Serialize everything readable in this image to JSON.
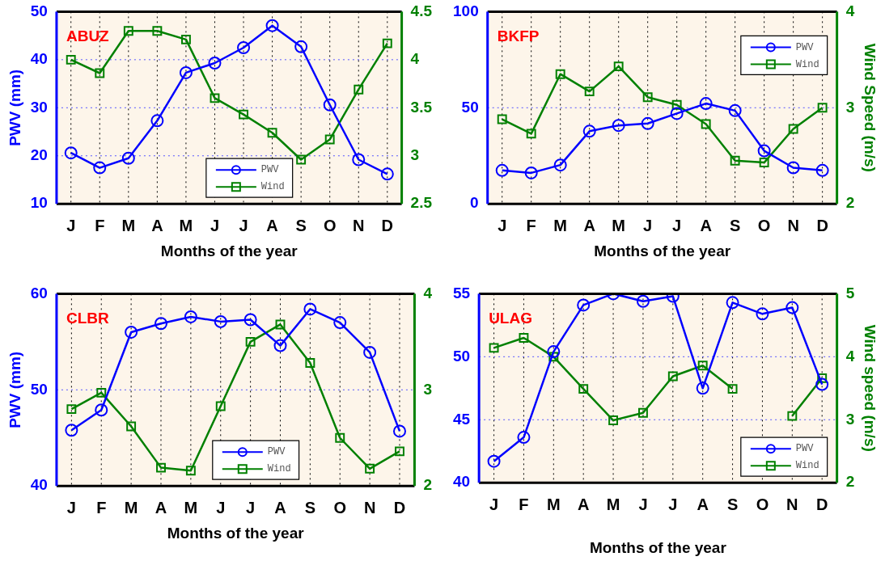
{
  "chart_data": [
    {
      "type": "line",
      "categories": [
        "J",
        "F",
        "M",
        "A",
        "M",
        "J",
        "J",
        "A",
        "S",
        "O",
        "N",
        "D"
      ],
      "xlabel": "Months of the year",
      "ylabel": "PWV (mm)",
      "ylim": [
        10,
        50
      ],
      "yticks": [
        10,
        20,
        30,
        40,
        50
      ],
      "y2lim": [
        2.5,
        4.5
      ],
      "y2ticks": [
        2.5,
        3,
        3.5,
        4,
        4.5
      ],
      "grid": true,
      "legend": "bottom",
      "annotations": [
        "ABUZ"
      ],
      "series": [
        {
          "name": "PWV",
          "color": "#0000ff",
          "marker": "circle",
          "values": [
            20.6,
            17.5,
            19.5,
            27.3,
            37.3,
            39.3,
            42.5,
            47.1,
            42.7,
            30.6,
            19.2,
            16.2
          ]
        },
        {
          "name": "Wind",
          "color": "#008000",
          "marker": "square",
          "axis": "y2",
          "values": [
            4.0,
            3.86,
            4.3,
            4.3,
            4.21,
            3.6,
            3.43,
            3.24,
            2.96,
            3.17,
            3.69,
            4.17
          ]
        }
      ]
    },
    {
      "type": "line",
      "categories": [
        "J",
        "F",
        "M",
        "A",
        "M",
        "J",
        "J",
        "A",
        "S",
        "O",
        "N",
        "D"
      ],
      "xlabel": "Months of the year",
      "y2label": "Wind Speed (m/s)",
      "ylim": [
        0,
        100
      ],
      "yticks": [
        0,
        50,
        100
      ],
      "y2lim": [
        2,
        4
      ],
      "y2ticks": [
        2,
        3,
        4
      ],
      "grid": "x",
      "ref_lines": [
        {
          "axis": "y",
          "value": 50,
          "color": "#5555ff",
          "line_style": "dotted"
        }
      ],
      "legend": "top right",
      "annotations": [
        "BKFP"
      ],
      "series": [
        {
          "name": "PWV",
          "color": "#0000ff",
          "marker": "circle",
          "values": [
            17.4,
            16.1,
            20.2,
            37.8,
            40.8,
            41.8,
            47,
            52.2,
            48.5,
            27.6,
            18.8,
            17.4
          ]
        },
        {
          "name": "Wind",
          "color": "#008000",
          "marker": "square",
          "axis": "y2",
          "values": [
            2.88,
            2.73,
            3.35,
            3.17,
            3.43,
            3.11,
            3.03,
            2.83,
            2.45,
            2.43,
            2.78,
            3.0
          ]
        }
      ]
    },
    {
      "type": "line",
      "categories": [
        "J",
        "F",
        "M",
        "A",
        "M",
        "J",
        "J",
        "A",
        "S",
        "O",
        "N",
        "D"
      ],
      "xlabel": "Months of the year",
      "ylabel": "PWV (mm)",
      "ylim": [
        40,
        60
      ],
      "yticks": [
        40,
        50,
        60
      ],
      "y2lim": [
        2,
        4
      ],
      "y2ticks": [
        2,
        3,
        4
      ],
      "grid": "x",
      "ref_lines": [
        {
          "axis": "y",
          "value": 50,
          "color": "#5555ff",
          "line_style": "dotted"
        }
      ],
      "legend": "bottom",
      "annotations": [
        "CLBR"
      ],
      "series": [
        {
          "name": "PWV",
          "color": "#0000ff",
          "marker": "circle",
          "values": [
            45.8,
            47.9,
            56.0,
            56.9,
            57.6,
            57.1,
            57.3,
            54.6,
            58.4,
            57.0,
            53.9,
            45.7
          ]
        },
        {
          "name": "Wind",
          "color": "#008000",
          "marker": "square",
          "axis": "y2",
          "values": [
            2.8,
            2.97,
            2.62,
            2.19,
            2.16,
            2.83,
            3.5,
            3.68,
            3.28,
            2.5,
            2.18,
            2.36
          ]
        }
      ]
    },
    {
      "type": "line",
      "categories": [
        "J",
        "F",
        "M",
        "A",
        "M",
        "J",
        "J",
        "A",
        "S",
        "O",
        "N",
        "D"
      ],
      "xlabel": "Months of the year",
      "y2label": "Wind speed (m/s)",
      "ylim": [
        40,
        55
      ],
      "yticks": [
        40,
        45,
        50,
        55
      ],
      "y2lim": [
        2,
        5
      ],
      "y2ticks": [
        2,
        3,
        4,
        5
      ],
      "grid": true,
      "legend": "bottom right",
      "annotations": [
        "ULAG"
      ],
      "series": [
        {
          "name": "PWV",
          "color": "#0000ff",
          "marker": "circle",
          "values": [
            41.7,
            43.6,
            50.4,
            54.1,
            55.0,
            54.4,
            54.8,
            47.5,
            54.3,
            53.4,
            53.9,
            47.8
          ]
        },
        {
          "name": "Wind",
          "color": "#008000",
          "marker": "square",
          "axis": "y2",
          "values": [
            4.14,
            4.3,
            4.0,
            3.49,
            2.99,
            3.11,
            3.69,
            3.86,
            3.49,
            null,
            3.06,
            3.66
          ]
        }
      ]
    }
  ]
}
